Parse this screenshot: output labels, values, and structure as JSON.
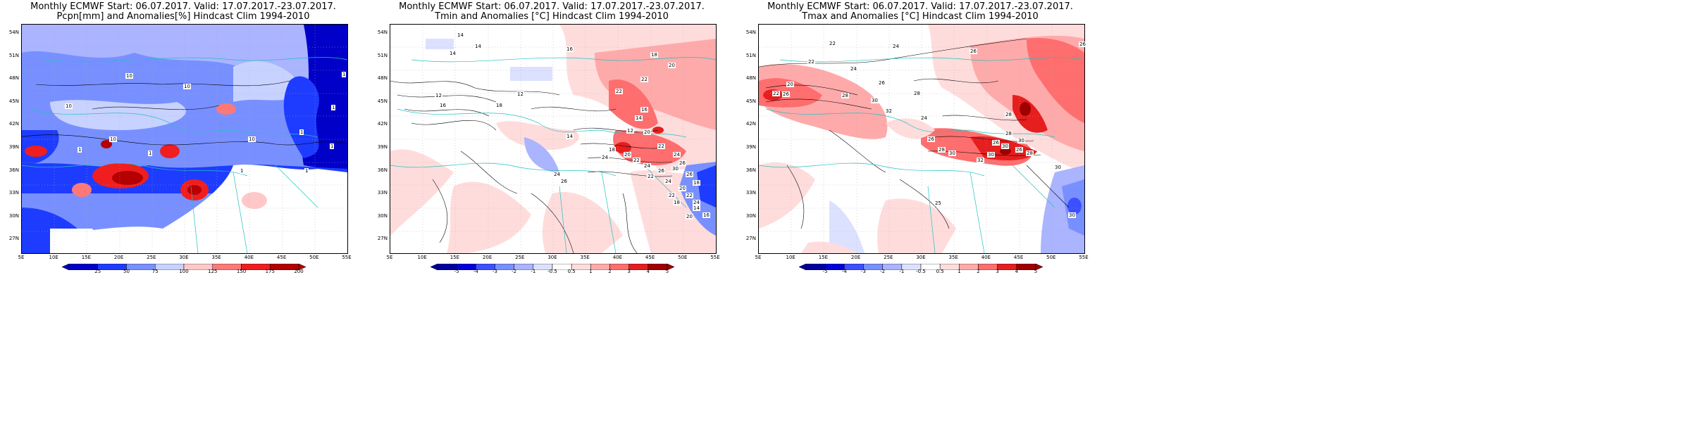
{
  "panels": [
    {
      "id": "pcpn",
      "title_line1": "Monthly ECMWF Start: 06.07.2017. Valid: 17.07.2017.-23.07.2017.",
      "title_line2": "Pcpn[mm] and Anomalies[%] Hindcast Clim 1994-2010",
      "colorbar": {
        "ticks": [
          "25",
          "50",
          "75",
          "100",
          "125",
          "150",
          "175",
          "200"
        ],
        "colors": [
          "#0000c8",
          "#1e3cff",
          "#7890ff",
          "#c8d2ff",
          "#ffc8c8",
          "#ff7878",
          "#f01e1e",
          "#b40000"
        ]
      },
      "contour_labels": [
        "10",
        "10",
        "1",
        "10",
        "1",
        "10",
        "1",
        "1",
        "10",
        "1",
        "1",
        "1",
        "1"
      ]
    },
    {
      "id": "tmin",
      "title_line1": "Monthly ECMWF Start: 06.07.2017. Valid: 17.07.2017.-23.07.2017.",
      "title_line2": "Tmin and Anomalies [°C] Hindcast Clim 1994-2010",
      "colorbar": {
        "ticks": [
          "-5",
          "-4",
          "-3",
          "-2",
          "-1",
          "-0.5",
          "0.5",
          "1",
          "2",
          "3",
          "4",
          "5"
        ],
        "colors": [
          "#0000a0",
          "#0000dc",
          "#3c50ff",
          "#7890ff",
          "#aab4ff",
          "#dce1ff",
          "#ffffff",
          "#ffdcdc",
          "#ffaaaa",
          "#ff6e6e",
          "#e61e1e",
          "#a00000"
        ]
      },
      "contour_labels": [
        "14",
        "14",
        "16",
        "14",
        "12",
        "18",
        "20",
        "22",
        "22",
        "12",
        "16",
        "18",
        "16",
        "14",
        "12",
        "14",
        "20",
        "22",
        "24",
        "24",
        "26",
        "18",
        "20",
        "22",
        "24",
        "26",
        "24",
        "26",
        "22",
        "24",
        "26",
        "30",
        "18",
        "20",
        "22",
        "14",
        "16",
        "18",
        "20",
        "24",
        "22"
      ]
    },
    {
      "id": "tmax",
      "title_line1": "Monthly ECMWF Start: 06.07.2017. Valid: 17.07.2017.-23.07.2017.",
      "title_line2": "Tmax and Anomalies [°C] Hindcast Clim 1994-2010",
      "colorbar": {
        "ticks": [
          "-5",
          "-4",
          "-3",
          "-2",
          "-1",
          "-0.5",
          "0.5",
          "1",
          "2",
          "3",
          "4",
          "5"
        ],
        "colors": [
          "#0000a0",
          "#0000dc",
          "#3c50ff",
          "#7890ff",
          "#aab4ff",
          "#dce1ff",
          "#ffffff",
          "#ffdcdc",
          "#ffaaaa",
          "#ff6e6e",
          "#e61e1e",
          "#a00000"
        ]
      },
      "contour_labels": [
        "22",
        "24",
        "26",
        "26",
        "22",
        "24",
        "26",
        "28",
        "20",
        "22",
        "26",
        "28",
        "30",
        "32",
        "28",
        "24",
        "26",
        "28",
        "30",
        "32",
        "30",
        "26",
        "28",
        "30",
        "26",
        "28",
        "30",
        "25",
        "30",
        "30"
      ]
    }
  ],
  "axes": {
    "lat_ticks": [
      "54N",
      "51N",
      "48N",
      "45N",
      "42N",
      "39N",
      "36N",
      "33N",
      "30N",
      "27N"
    ],
    "lon_ticks": [
      "5E",
      "10E",
      "15E",
      "20E",
      "25E",
      "30E",
      "35E",
      "40E",
      "45E",
      "50E",
      "55E"
    ]
  }
}
